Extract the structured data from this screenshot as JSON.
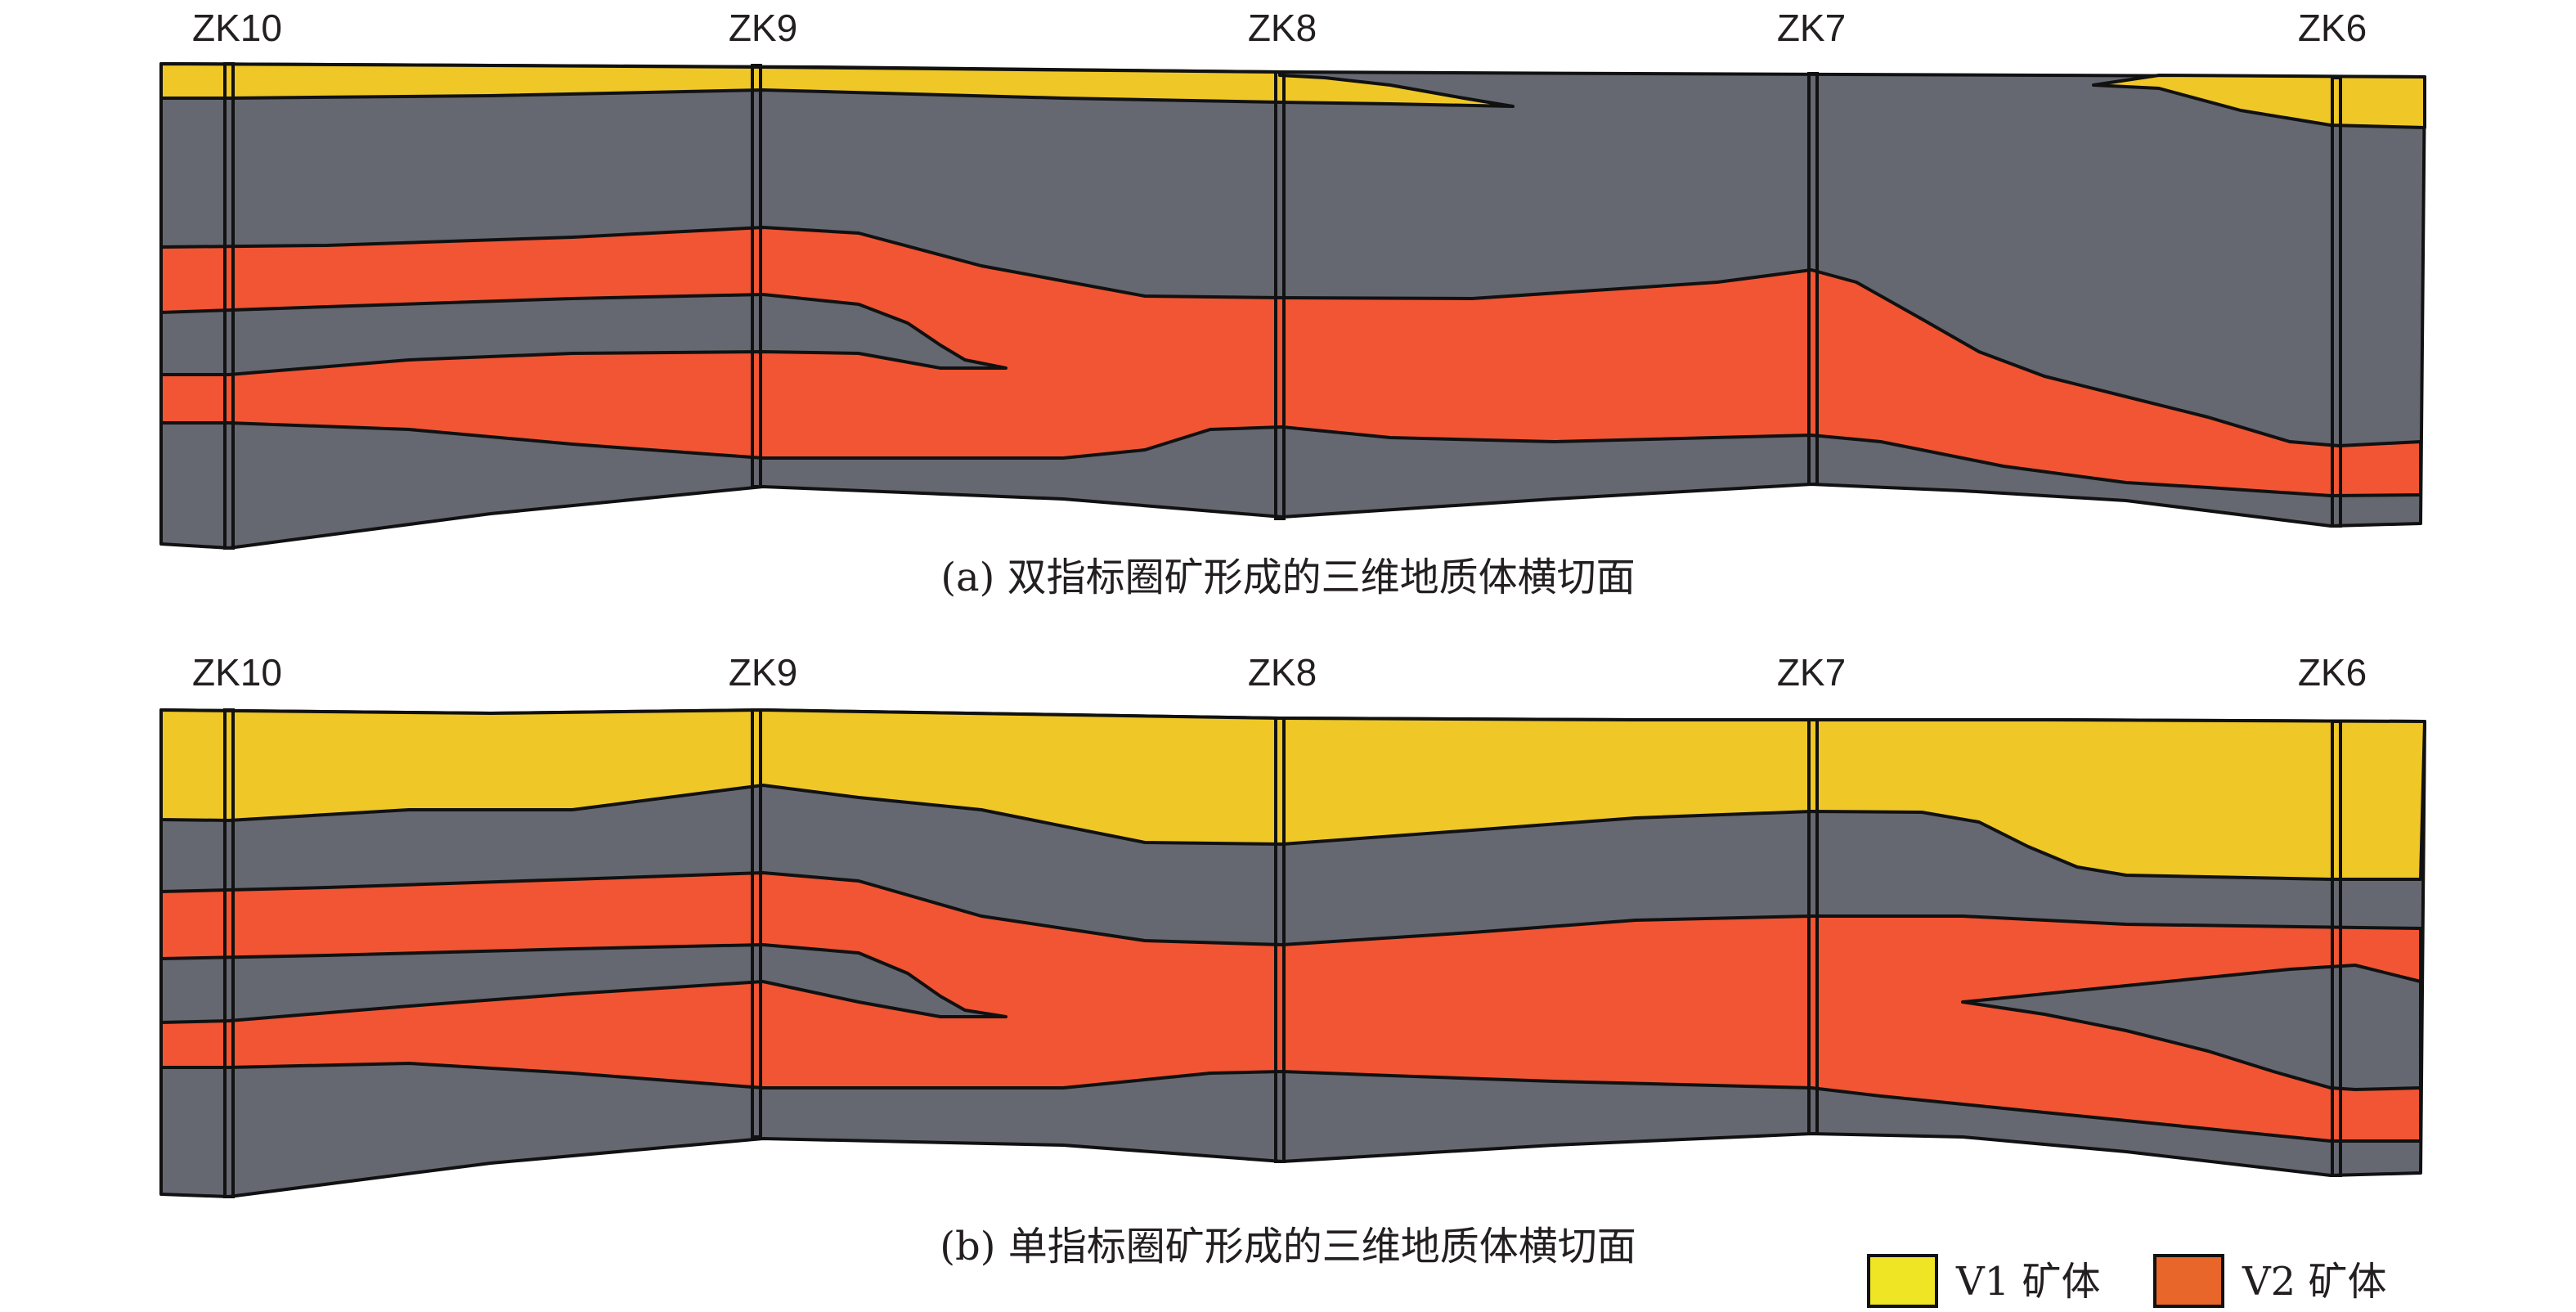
{
  "drillholes": [
    "ZK10",
    "ZK9",
    "ZK8",
    "ZK7",
    "ZK6"
  ],
  "panels": [
    {
      "id": "a",
      "caption": "(a) 双指标圈矿形成的三维地质体横切面"
    },
    {
      "id": "b",
      "caption": "(b) 单指标圈矿形成的三维地质体横切面"
    }
  ],
  "legend": [
    {
      "label": "V1 矿体",
      "color": "#efe524"
    },
    {
      "label": "V2 矿体",
      "color": "#e8662a"
    }
  ],
  "colors": {
    "waste_rock": "#656871",
    "v1_fill": "#efc727",
    "v2_fill": "#f15533",
    "outline": "#111111"
  }
}
